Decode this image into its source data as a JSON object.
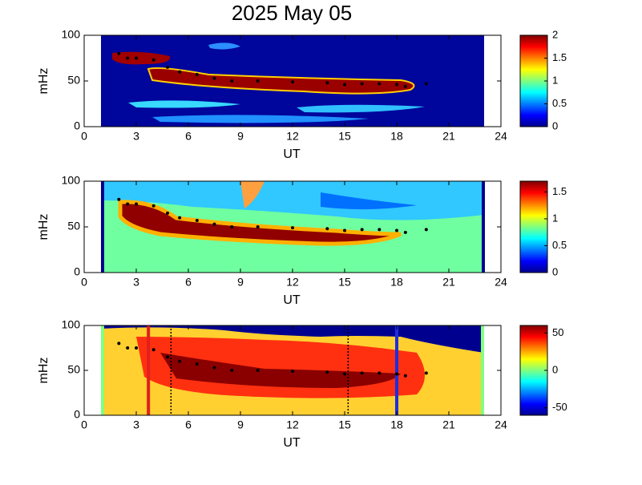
{
  "chart_data": [
    {
      "type": "spectrogram",
      "title": "2025 May 05",
      "xlabel": "UT",
      "ylabel": "mHz",
      "xlim": [
        0,
        24
      ],
      "xticks": [
        0,
        3,
        6,
        9,
        12,
        15,
        18,
        21,
        24
      ],
      "ylim": [
        0,
        100
      ],
      "yticks": [
        0,
        50,
        100
      ],
      "colorbar": {
        "lim": [
          0,
          2
        ],
        "ticks": [
          0,
          0.5,
          1,
          1.5,
          2
        ]
      },
      "trace": {
        "color": "#000000",
        "x": [
          2,
          2.5,
          3,
          4,
          4.8,
          5.5,
          6.5,
          7.5,
          8.5,
          10,
          12,
          14,
          15,
          16,
          17,
          18,
          18.5,
          19.7
        ],
        "y": [
          80,
          75,
          75,
          73,
          65,
          60,
          57,
          53,
          50,
          50,
          49,
          48,
          46,
          47,
          47,
          46,
          44,
          47
        ]
      }
    },
    {
      "type": "spectrogram",
      "xlabel": "UT",
      "ylabel": "mHz",
      "xlim": [
        0,
        24
      ],
      "xticks": [
        0,
        3,
        6,
        9,
        12,
        15,
        18,
        21,
        24
      ],
      "ylim": [
        0,
        100
      ],
      "yticks": [
        0,
        50,
        100
      ],
      "colorbar": {
        "lim": [
          0,
          1.7
        ],
        "ticks": [
          0,
          0.5,
          1,
          1.5
        ]
      },
      "trace": {
        "color": "#000000",
        "x": [
          2,
          2.5,
          3,
          4,
          4.8,
          5.5,
          6.5,
          7.5,
          8.5,
          10,
          12,
          14,
          15,
          16,
          17,
          18,
          18.5,
          19.7
        ],
        "y": [
          80,
          75,
          75,
          73,
          65,
          60,
          57,
          53,
          50,
          50,
          49,
          48,
          46,
          47,
          47,
          46,
          44,
          47
        ]
      }
    },
    {
      "type": "spectrogram",
      "xlabel": "UT",
      "ylabel": "mHz",
      "xlim": [
        0,
        24
      ],
      "xticks": [
        0,
        3,
        6,
        9,
        12,
        15,
        18,
        21,
        24
      ],
      "ylim": [
        0,
        100
      ],
      "yticks": [
        0,
        50,
        100
      ],
      "colorbar": {
        "lim": [
          -60,
          60
        ],
        "ticks": [
          -50,
          0,
          50
        ]
      },
      "trace": {
        "color": "#000000",
        "x": [
          2,
          2.5,
          3,
          4,
          4.8,
          5.5,
          6.5,
          7.5,
          8.5,
          10,
          12,
          14,
          15,
          16,
          17,
          18,
          18.5,
          19.7
        ],
        "y": [
          80,
          75,
          75,
          73,
          65,
          60,
          57,
          53,
          50,
          50,
          49,
          48,
          46,
          47,
          47,
          46,
          44,
          47
        ]
      },
      "vlines": [
        {
          "x": 3.7,
          "color": "#e0201c"
        },
        {
          "x": 18,
          "color": "#1c2ee0"
        },
        {
          "x": 5,
          "color": "#000000",
          "dotted": true
        },
        {
          "x": 15.2,
          "color": "#000000",
          "dotted": true
        }
      ]
    }
  ]
}
